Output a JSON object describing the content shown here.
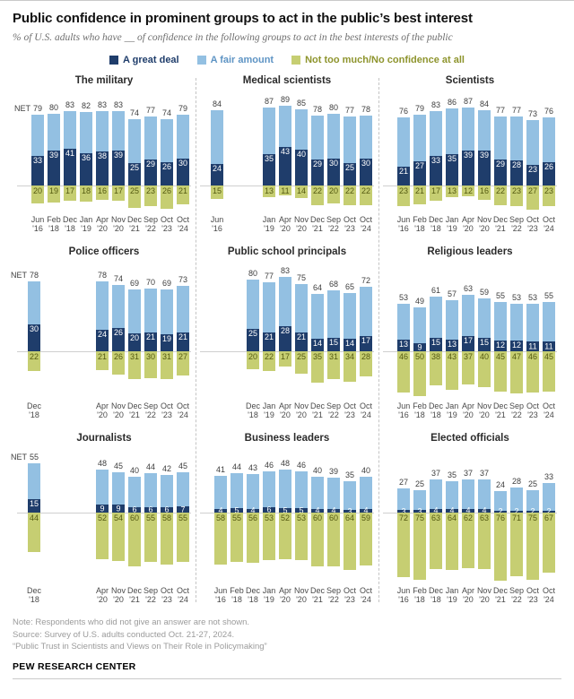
{
  "header": {
    "title": "Public confidence in prominent groups to act in the public’s best interest",
    "subtitle": "% of U.S. adults who have __ of confidence in the following groups to act in the best interests of the public"
  },
  "net_word": "NET",
  "colors": {
    "great_deal": "#1f3d6b",
    "fair_amount": "#93c0e2",
    "not_too_much": "#c6ce72",
    "baseline": "#cfcfcf"
  },
  "legend": [
    {
      "label": "A great deal",
      "color": "#1f3d6b",
      "text_color": "#1f3d6b"
    },
    {
      "label": "A fair amount",
      "color": "#93c0e2",
      "text_color": "#5e94c4"
    },
    {
      "label": "Not too much/No confidence at all",
      "color": "#c6ce72",
      "text_color": "#8e942d"
    }
  ],
  "chart_data": [
    {
      "type": "bar",
      "stacked": true,
      "title": "The military",
      "show_net_label": true,
      "gap_after_first": false,
      "months": [
        "Jun",
        "Feb",
        "Dec",
        "Jan",
        "Apr",
        "Nov",
        "Dec",
        "Sep",
        "Oct",
        "Oct"
      ],
      "years": [
        "'16",
        "'18",
        "'18",
        "'19",
        "'20",
        "'20",
        "'21",
        "'22",
        "'23",
        "'24"
      ],
      "net": [
        79,
        80,
        83,
        82,
        83,
        83,
        74,
        77,
        74,
        79
      ],
      "great_deal": [
        33,
        39,
        41,
        36,
        38,
        39,
        25,
        29,
        26,
        30
      ],
      "not_too_much": [
        20,
        19,
        17,
        18,
        16,
        17,
        25,
        23,
        26,
        21
      ]
    },
    {
      "type": "bar",
      "stacked": true,
      "title": "Medical scientists",
      "show_net_label": false,
      "gap_after_first": true,
      "months": [
        "Jun",
        "Jan",
        "Apr",
        "Nov",
        "Dec",
        "Sep",
        "Oct",
        "Oct"
      ],
      "years": [
        "'16",
        "'19",
        "'20",
        "'20",
        "'21",
        "'22",
        "'23",
        "'24"
      ],
      "net": [
        84,
        87,
        89,
        85,
        78,
        80,
        77,
        78
      ],
      "great_deal": [
        24,
        35,
        43,
        40,
        29,
        30,
        25,
        30
      ],
      "not_too_much": [
        15,
        13,
        11,
        14,
        22,
        20,
        22,
        22
      ]
    },
    {
      "type": "bar",
      "stacked": true,
      "title": "Scientists",
      "show_net_label": false,
      "gap_after_first": false,
      "months": [
        "Jun",
        "Feb",
        "Dec",
        "Jan",
        "Apr",
        "Nov",
        "Dec",
        "Sep",
        "Oct",
        "Oct"
      ],
      "years": [
        "'16",
        "'18",
        "'18",
        "'19",
        "'20",
        "'20",
        "'21",
        "'22",
        "'23",
        "'24"
      ],
      "net": [
        76,
        79,
        83,
        86,
        87,
        84,
        77,
        77,
        73,
        76
      ],
      "great_deal": [
        21,
        27,
        33,
        35,
        39,
        39,
        29,
        28,
        23,
        26
      ],
      "not_too_much": [
        23,
        21,
        17,
        13,
        12,
        16,
        22,
        23,
        27,
        23
      ]
    },
    {
      "type": "bar",
      "stacked": true,
      "title": "Police officers",
      "show_net_label": true,
      "gap_after_first": true,
      "months": [
        "Dec",
        "Apr",
        "Nov",
        "Dec",
        "Sep",
        "Oct",
        "Oct"
      ],
      "years": [
        "'18",
        "'20",
        "'20",
        "'21",
        "'22",
        "'23",
        "'24"
      ],
      "net": [
        78,
        78,
        74,
        69,
        70,
        69,
        73
      ],
      "great_deal": [
        30,
        24,
        26,
        20,
        21,
        19,
        21
      ],
      "not_too_much": [
        22,
        21,
        26,
        31,
        30,
        31,
        27
      ]
    },
    {
      "type": "bar",
      "stacked": true,
      "title": "Public school principals",
      "show_net_label": false,
      "gap_after_first": false,
      "months": [
        "Dec",
        "Jan",
        "Apr",
        "Nov",
        "Dec",
        "Sep",
        "Oct",
        "Oct"
      ],
      "years": [
        "'18",
        "'19",
        "'20",
        "'20",
        "'21",
        "'22",
        "'23",
        "'24"
      ],
      "net": [
        80,
        77,
        83,
        75,
        64,
        68,
        65,
        72
      ],
      "great_deal": [
        25,
        21,
        28,
        21,
        14,
        15,
        14,
        17
      ],
      "not_too_much": [
        20,
        22,
        17,
        25,
        35,
        31,
        34,
        28
      ]
    },
    {
      "type": "bar",
      "stacked": true,
      "title": "Religious leaders",
      "show_net_label": false,
      "gap_after_first": false,
      "months": [
        "Jun",
        "Feb",
        "Dec",
        "Jan",
        "Apr",
        "Nov",
        "Dec",
        "Sep",
        "Oct",
        "Oct"
      ],
      "years": [
        "'16",
        "'18",
        "'18",
        "'19",
        "'20",
        "'20",
        "'21",
        "'22",
        "'23",
        "'24"
      ],
      "net": [
        53,
        49,
        61,
        57,
        63,
        59,
        55,
        53,
        53,
        55
      ],
      "great_deal": [
        13,
        9,
        15,
        13,
        17,
        15,
        12,
        12,
        11,
        11
      ],
      "not_too_much": [
        46,
        50,
        38,
        43,
        37,
        40,
        45,
        47,
        46,
        45
      ]
    },
    {
      "type": "bar",
      "stacked": true,
      "title": "Journalists",
      "show_net_label": true,
      "gap_after_first": true,
      "months": [
        "Dec",
        "Apr",
        "Nov",
        "Dec",
        "Sep",
        "Oct",
        "Oct"
      ],
      "years": [
        "'18",
        "'20",
        "'20",
        "'21",
        "'22",
        "'23",
        "'24"
      ],
      "net": [
        55,
        48,
        45,
        40,
        44,
        42,
        45
      ],
      "great_deal": [
        15,
        9,
        9,
        6,
        6,
        6,
        7
      ],
      "not_too_much": [
        44,
        52,
        54,
        60,
        55,
        58,
        55
      ]
    },
    {
      "type": "bar",
      "stacked": true,
      "title": "Business leaders",
      "show_net_label": false,
      "gap_after_first": false,
      "months": [
        "Jun",
        "Feb",
        "Dec",
        "Jan",
        "Apr",
        "Nov",
        "Dec",
        "Sep",
        "Oct",
        "Oct"
      ],
      "years": [
        "'16",
        "'18",
        "'18",
        "'19",
        "'20",
        "'20",
        "'21",
        "'22",
        "'23",
        "'24"
      ],
      "net": [
        41,
        44,
        43,
        46,
        48,
        46,
        40,
        39,
        35,
        40
      ],
      "great_deal": [
        4,
        5,
        4,
        6,
        5,
        5,
        4,
        4,
        3,
        4
      ],
      "not_too_much": [
        58,
        55,
        56,
        53,
        52,
        53,
        60,
        60,
        64,
        59
      ]
    },
    {
      "type": "bar",
      "stacked": true,
      "title": "Elected officials",
      "show_net_label": false,
      "gap_after_first": false,
      "months": [
        "Jun",
        "Feb",
        "Dec",
        "Jan",
        "Apr",
        "Nov",
        "Dec",
        "Sep",
        "Oct",
        "Oct"
      ],
      "years": [
        "'16",
        "'18",
        "'18",
        "'19",
        "'20",
        "'20",
        "'21",
        "'22",
        "'23",
        "'24"
      ],
      "net": [
        27,
        25,
        37,
        35,
        37,
        37,
        24,
        28,
        25,
        33
      ],
      "great_deal": [
        3,
        3,
        4,
        4,
        4,
        4,
        2,
        2,
        2,
        2
      ],
      "not_too_much": [
        72,
        75,
        63,
        64,
        62,
        63,
        76,
        71,
        75,
        67
      ]
    }
  ],
  "footer": {
    "note": "Note: Respondents who did not give an answer are not shown.",
    "source": "Source: Survey of U.S. adults conducted Oct. 21-27, 2024.",
    "report": "“Public Trust in Scientists and Views on Their Role in Policymaking”",
    "brand": "PEW RESEARCH CENTER"
  }
}
